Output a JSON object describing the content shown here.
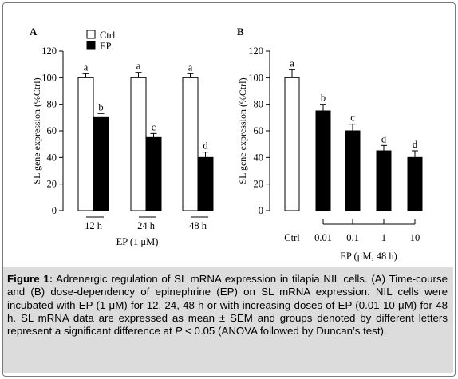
{
  "chart_data": [
    {
      "type": "bar",
      "panel_label": "A",
      "ylabel": "SL gene expression (%Ctrl)",
      "xlabel": "EP (1 μM)",
      "ylim": [
        0,
        120
      ],
      "yticks": [
        "0",
        "20",
        "40",
        "60",
        "80",
        "100",
        "120"
      ],
      "categories": [
        "12 h",
        "24 h",
        "48 h"
      ],
      "legend_position": "top-center",
      "series": [
        {
          "name": "Ctrl",
          "color": "#ffffff",
          "values": [
            100,
            100,
            100
          ],
          "errors": [
            3,
            4,
            3
          ],
          "letters": [
            "a",
            "a",
            "a"
          ]
        },
        {
          "name": "EP",
          "color": "#000000",
          "values": [
            70,
            55,
            40
          ],
          "errors": [
            3,
            3,
            4
          ],
          "letters": [
            "b",
            "c",
            "d"
          ]
        }
      ]
    },
    {
      "type": "bar",
      "panel_label": "B",
      "ylabel": "SL gene expression (%Ctrl)",
      "xlabel": "EP (μM, 48 h)",
      "ylim": [
        0,
        120
      ],
      "yticks": [
        "0",
        "20",
        "40",
        "60",
        "80",
        "100",
        "120"
      ],
      "categories": [
        "Ctrl",
        "0.01",
        "0.1",
        "1",
        "10"
      ],
      "values": [
        100,
        75,
        60,
        45,
        40
      ],
      "errors": [
        6,
        5,
        5,
        4,
        5
      ],
      "letters": [
        "a",
        "b",
        "c",
        "d",
        "d"
      ],
      "colors": [
        "#ffffff",
        "#000000",
        "#000000",
        "#000000",
        "#000000"
      ]
    }
  ],
  "caption": {
    "label": "Figure 1:",
    "text_1": " Adrenergic regulation of SL mRNA expression in tilapia NIL cells. (A) Time-course and (B) dose-dependency of epinephrine (EP) on SL mRNA expression. NIL cells were incubated with EP (1 μM) for 12, 24, 48 h or with increasing doses of EP (0.01-10 μM) for 48 h. SL mRNA data are expressed as mean ± SEM and groups denoted by different letters represent a significant difference at ",
    "p_symbol": "P",
    "text_2": " < 0.05 (ANOVA followed by Duncan’s test)."
  }
}
